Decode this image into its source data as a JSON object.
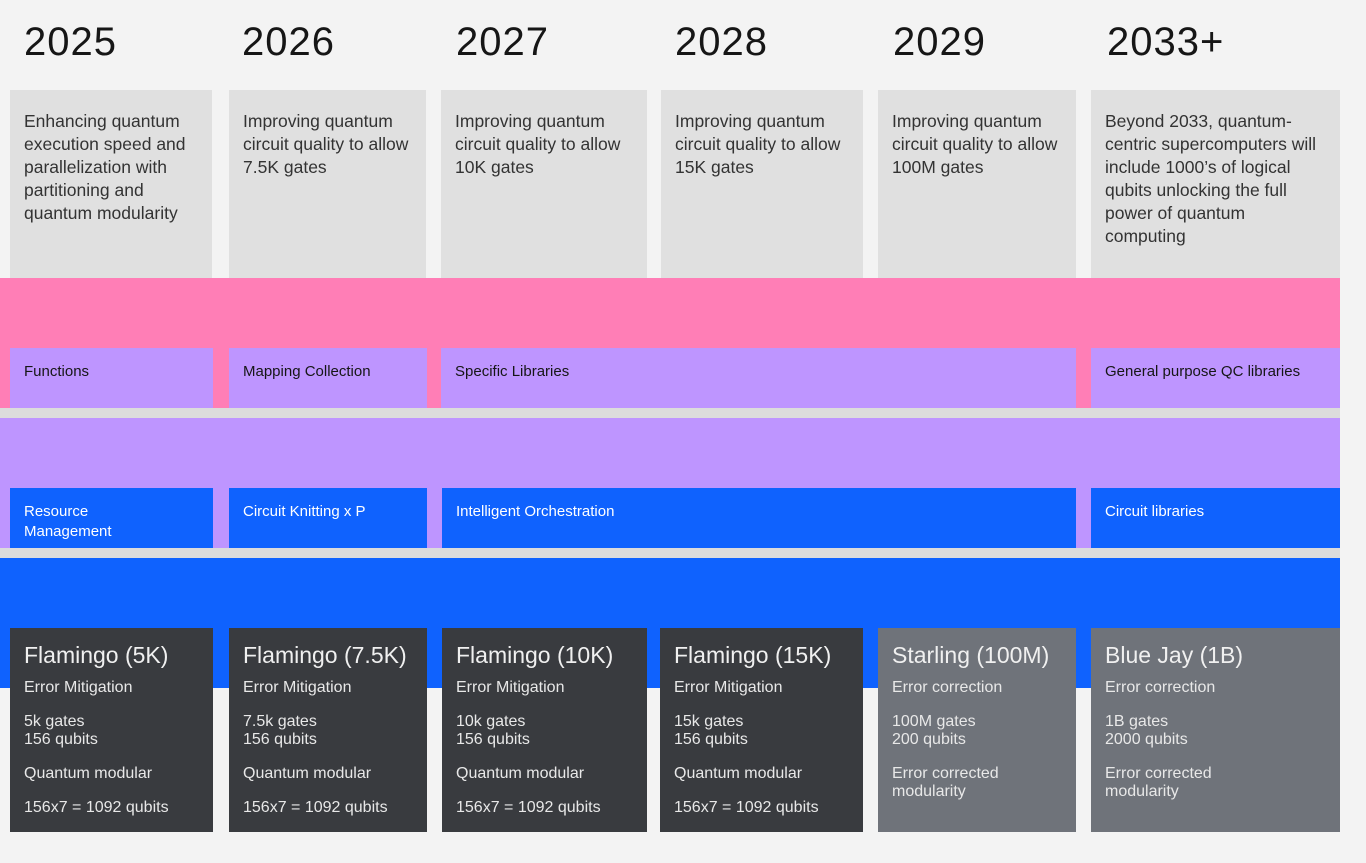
{
  "colors": {
    "pink": "#ff7eb6",
    "purple": "#be95ff",
    "blue": "#0f62fe",
    "dark": "#393b3f",
    "grey": "#6f737a",
    "desc_bg": "#e0e0e0"
  },
  "columns": [
    {
      "year": "2025",
      "desc": "Enhancing quantum execution speed and parallelization with partitioning and quantum modularity"
    },
    {
      "year": "2026",
      "desc": "Improving quantum circuit quality to allow 7.5K gates"
    },
    {
      "year": "2027",
      "desc": "Improving quantum circuit quality to allow 10K gates"
    },
    {
      "year": "2028",
      "desc": "Improving quantum circuit quality to allow 15K gates"
    },
    {
      "year": "2029",
      "desc": "Improving quantum circuit quality to allow 100M gates"
    },
    {
      "year": "2033+",
      "desc": "Beyond 2033, quantum-centric supercomputers will include 1000’s of logical qubits unlocking the full power of quantum computing"
    }
  ],
  "purple_row": [
    "Functions",
    "Mapping Collection",
    "Specific Libraries",
    "General purpose QC libraries"
  ],
  "blue_row": [
    "Resource Management",
    "Circuit Knitting x P",
    "Intelligent Orchestration",
    "Circuit libraries"
  ],
  "processors": [
    {
      "name": "Flamingo (5K)",
      "mode": "Error Mitigation",
      "gates": "5k gates",
      "qubits": "156 qubits",
      "mod1": "Quantum modular",
      "mod2": "156x7 = 1092 qubits"
    },
    {
      "name": "Flamingo (7.5K)",
      "mode": "Error Mitigation",
      "gates": "7.5k gates",
      "qubits": "156 qubits",
      "mod1": "Quantum modular",
      "mod2": "156x7 = 1092 qubits"
    },
    {
      "name": "Flamingo (10K)",
      "mode": "Error Mitigation",
      "gates": "10k gates",
      "qubits": "156 qubits",
      "mod1": "Quantum modular",
      "mod2": "156x7 = 1092 qubits"
    },
    {
      "name": "Flamingo (15K)",
      "mode": "Error Mitigation",
      "gates": "15k gates",
      "qubits": "156 qubits",
      "mod1": "Quantum modular",
      "mod2": "156x7 = 1092 qubits"
    },
    {
      "name": "Starling (100M)",
      "mode": "Error correction",
      "gates": "100M gates",
      "qubits": "200 qubits",
      "mod1": "Error corrected",
      "mod2": "modularity"
    },
    {
      "name": "Blue Jay (1B)",
      "mode": "Error correction",
      "gates": "1B gates",
      "qubits": "2000 qubits",
      "mod1": "Error corrected",
      "mod2": "modularity"
    }
  ]
}
